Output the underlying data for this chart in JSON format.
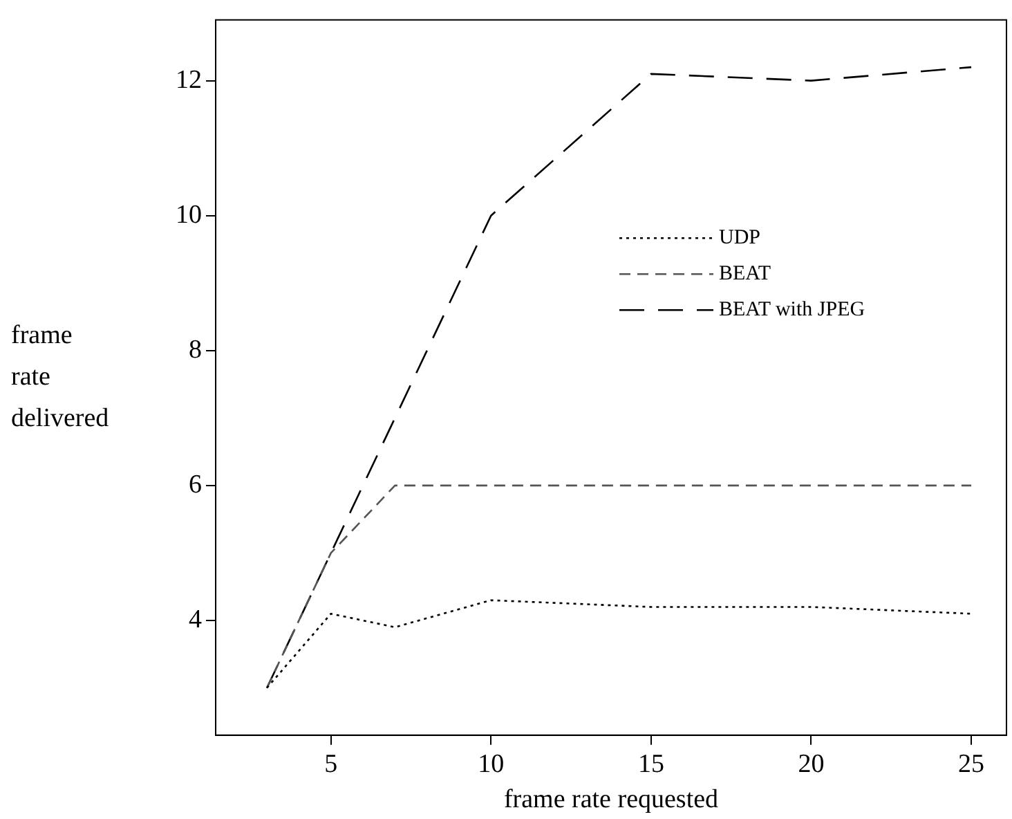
{
  "chart_data": {
    "type": "line",
    "xlabel": "frame rate requested",
    "ylabel": "frame rate delivered",
    "x": [
      3,
      5,
      7,
      10,
      15,
      20,
      25
    ],
    "series": [
      {
        "name": "UDP",
        "color": "#000000",
        "line_style": "dotted",
        "values": [
          3,
          4.1,
          3.9,
          4.3,
          4.2,
          4.2,
          4.1
        ]
      },
      {
        "name": "BEAT",
        "color": "#555555",
        "line_style": "dashed",
        "values": [
          3,
          5,
          6,
          6,
          6,
          6,
          6
        ]
      },
      {
        "name": "BEAT with JPEG",
        "color": "#000000",
        "line_style": "dashed",
        "values": [
          3,
          5,
          7,
          10,
          12.1,
          12.0,
          12.2
        ]
      }
    ],
    "xlim": [
      1.4,
      26.1
    ],
    "xticks": [
      5,
      10,
      15,
      20,
      25
    ],
    "ylim": [
      2.3,
      12.9
    ],
    "yticks": [
      4,
      6,
      8,
      10,
      12
    ],
    "legend": "right",
    "marker": "none"
  }
}
